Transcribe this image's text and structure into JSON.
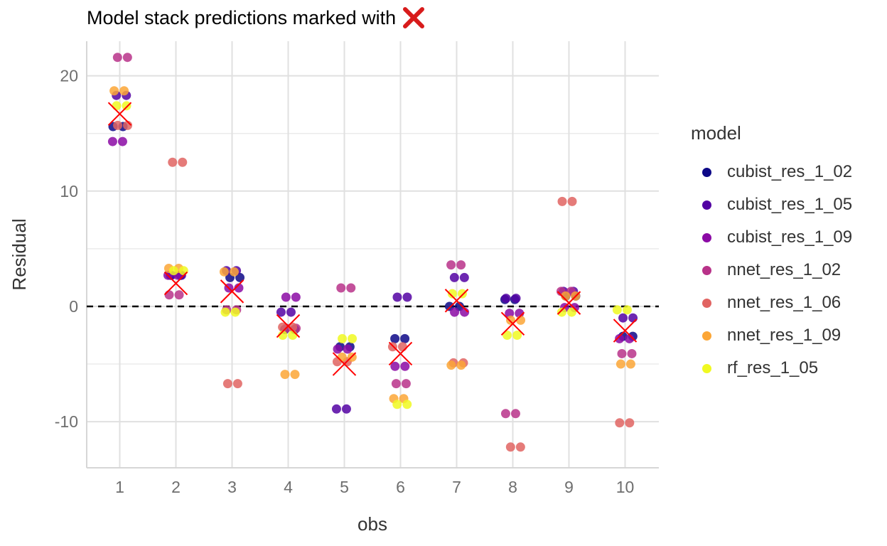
{
  "title": "Model stack predictions marked with",
  "title_icon": "red-x-icon",
  "chart_data": {
    "type": "scatter",
    "xlabel": "obs",
    "ylabel": "Residual",
    "categories": [
      "1",
      "2",
      "3",
      "4",
      "5",
      "6",
      "7",
      "8",
      "9",
      "10"
    ],
    "ylim": [
      -14,
      23
    ],
    "yticks": [
      -10,
      0,
      10,
      20
    ],
    "grid": true,
    "reference_line": {
      "y": 0,
      "style": "dashed",
      "color": "#000000"
    },
    "legend_title": "model",
    "legend_position": "right",
    "series": [
      {
        "name": "cubist_res_1_02",
        "color": "#0d0887",
        "values": [
          15.6,
          2.7,
          2.5,
          -2.0,
          -3.5,
          -2.8,
          0.0,
          0.6,
          0.9,
          -2.6
        ]
      },
      {
        "name": "cubist_res_1_05",
        "color": "#5302a3",
        "values": [
          18.3,
          2.7,
          3.1,
          -0.5,
          -8.9,
          0.8,
          2.5,
          0.7,
          1.3,
          -1.0
        ]
      },
      {
        "name": "cubist_res_1_09",
        "color": "#8b0aa5",
        "values": [
          14.3,
          2.7,
          1.6,
          0.8,
          -3.7,
          -5.2,
          -0.5,
          -0.6,
          -0.1,
          -2.8
        ]
      },
      {
        "name": "nnet_res_1_02",
        "color": "#b83289",
        "values": [
          21.6,
          1.0,
          -0.3,
          -1.9,
          1.6,
          -6.7,
          3.6,
          -9.3,
          1.3,
          -4.1
        ]
      },
      {
        "name": "nnet_res_1_06",
        "color": "#e16462",
        "values": [
          15.7,
          12.5,
          -6.7,
          -1.8,
          -4.8,
          -3.5,
          -4.9,
          -12.2,
          9.1,
          -10.1
        ]
      },
      {
        "name": "nnet_res_1_09",
        "color": "#fca636",
        "values": [
          18.7,
          3.3,
          3.0,
          -5.9,
          -4.4,
          -8.0,
          -5.1,
          -1.2,
          0.9,
          -5.0
        ]
      },
      {
        "name": "rf_res_1_05",
        "color": "#f0f921",
        "values": [
          17.4,
          3.1,
          -0.5,
          -2.5,
          -2.8,
          -8.5,
          1.1,
          -2.5,
          -0.5,
          -0.3
        ]
      }
    ],
    "stack_predictions": {
      "marker": "x",
      "color": "#ff0000",
      "values": [
        16.7,
        2.0,
        1.3,
        -1.7,
        -5.0,
        -4.1,
        0.5,
        -1.5,
        0.3,
        -2.1
      ]
    }
  }
}
